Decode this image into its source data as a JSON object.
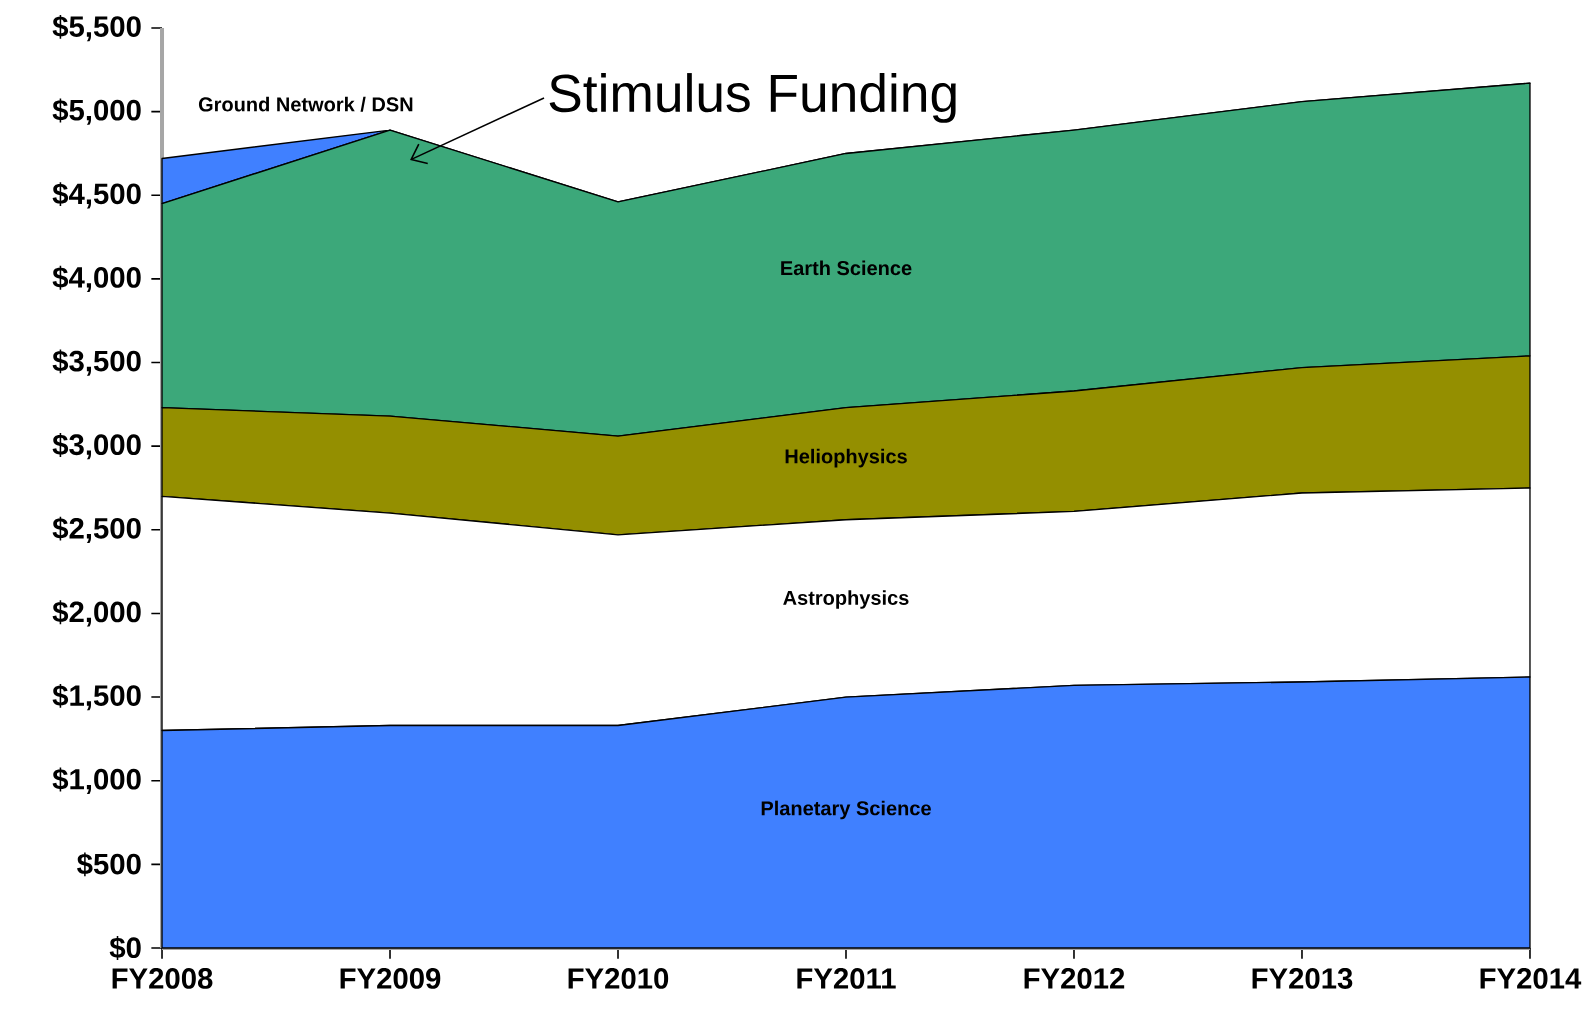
{
  "chart_data": {
    "type": "area",
    "stacked": true,
    "categories": [
      "FY2008",
      "FY2009",
      "FY2010",
      "FY2011",
      "FY2012",
      "FY2013",
      "FY2014"
    ],
    "series": [
      {
        "name": "Planetary Science",
        "color": "#4080ff",
        "values": [
          1300,
          1330,
          1330,
          1500,
          1570,
          1590,
          1620
        ]
      },
      {
        "name": "Astrophysics",
        "color": "#ffffff",
        "values": [
          1400,
          1270,
          1140,
          1060,
          1040,
          1130,
          1130
        ]
      },
      {
        "name": "Heliophysics",
        "color": "#948f00",
        "values": [
          530,
          580,
          590,
          670,
          720,
          750,
          790
        ]
      },
      {
        "name": "Earth Science",
        "color": "#3ca87a",
        "values": [
          1220,
          1710,
          1400,
          1520,
          1560,
          1590,
          1630
        ]
      },
      {
        "name": "Ground Network / DSN",
        "color": "#4080ff",
        "values": [
          270,
          0,
          0,
          0,
          0,
          0,
          0
        ]
      }
    ],
    "ylim": [
      0,
      5500
    ],
    "yticks": [
      {
        "value": 0,
        "label": "$0"
      },
      {
        "value": 500,
        "label": "$500"
      },
      {
        "value": 1000,
        "label": "$1,000"
      },
      {
        "value": 1500,
        "label": "$1,500"
      },
      {
        "value": 2000,
        "label": "$2,000"
      },
      {
        "value": 2500,
        "label": "$2,500"
      },
      {
        "value": 3000,
        "label": "$3,000"
      },
      {
        "value": 3500,
        "label": "$3,500"
      },
      {
        "value": 4000,
        "label": "$4,000"
      },
      {
        "value": 4500,
        "label": "$4,500"
      },
      {
        "value": 5000,
        "label": "$5,000"
      },
      {
        "value": 5500,
        "label": "$5,500"
      }
    ],
    "annotations": [
      "Stimulus Funding"
    ]
  }
}
